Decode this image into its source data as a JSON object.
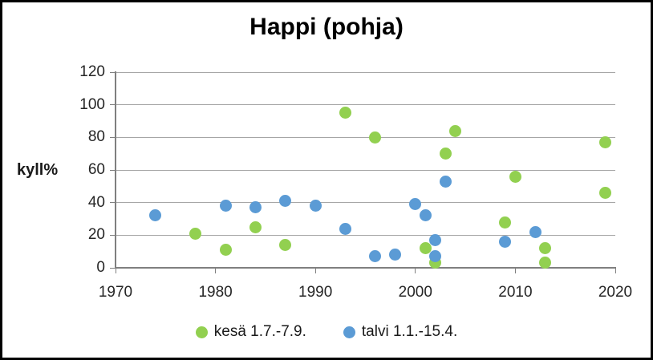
{
  "chart_data": {
    "type": "scatter",
    "title": "Happi (pohja)",
    "ylabel": "kyll%",
    "xlabel": "",
    "xlim": [
      1970,
      2020
    ],
    "ylim": [
      0,
      120
    ],
    "xticks": [
      1970,
      1980,
      1990,
      2000,
      2010,
      2020
    ],
    "yticks": [
      0,
      20,
      40,
      60,
      80,
      100,
      120
    ],
    "grid": "horizontal-only",
    "legend_position": "bottom-center",
    "series": [
      {
        "name": "kesä 1.7.-7.9.",
        "color": "#92d050",
        "points": [
          [
            1978,
            21
          ],
          [
            1981,
            11
          ],
          [
            1984,
            25
          ],
          [
            1987,
            14
          ],
          [
            1993,
            95
          ],
          [
            1996,
            80
          ],
          [
            2001,
            12
          ],
          [
            2002,
            3
          ],
          [
            2003,
            70
          ],
          [
            2004,
            84
          ],
          [
            2009,
            28
          ],
          [
            2010,
            56
          ],
          [
            2013,
            12
          ],
          [
            2013,
            3
          ],
          [
            2019,
            46
          ],
          [
            2019,
            77
          ]
        ]
      },
      {
        "name": "talvi 1.1.-15.4.",
        "color": "#5b9bd5",
        "points": [
          [
            1974,
            32
          ],
          [
            1981,
            38
          ],
          [
            1984,
            37
          ],
          [
            1987,
            41
          ],
          [
            1990,
            38
          ],
          [
            1993,
            24
          ],
          [
            1996,
            7
          ],
          [
            1998,
            8
          ],
          [
            2000,
            39
          ],
          [
            2001,
            32
          ],
          [
            2002,
            17
          ],
          [
            2002,
            7
          ],
          [
            2003,
            53
          ],
          [
            2009,
            16
          ],
          [
            2012,
            22
          ]
        ]
      }
    ],
    "colors": {
      "gridline": "#a6a6a6",
      "axis": "#7f7f7f",
      "tick_text": "#262626",
      "title_text": "#000000",
      "background": "#ffffff",
      "border": "#000000"
    }
  }
}
